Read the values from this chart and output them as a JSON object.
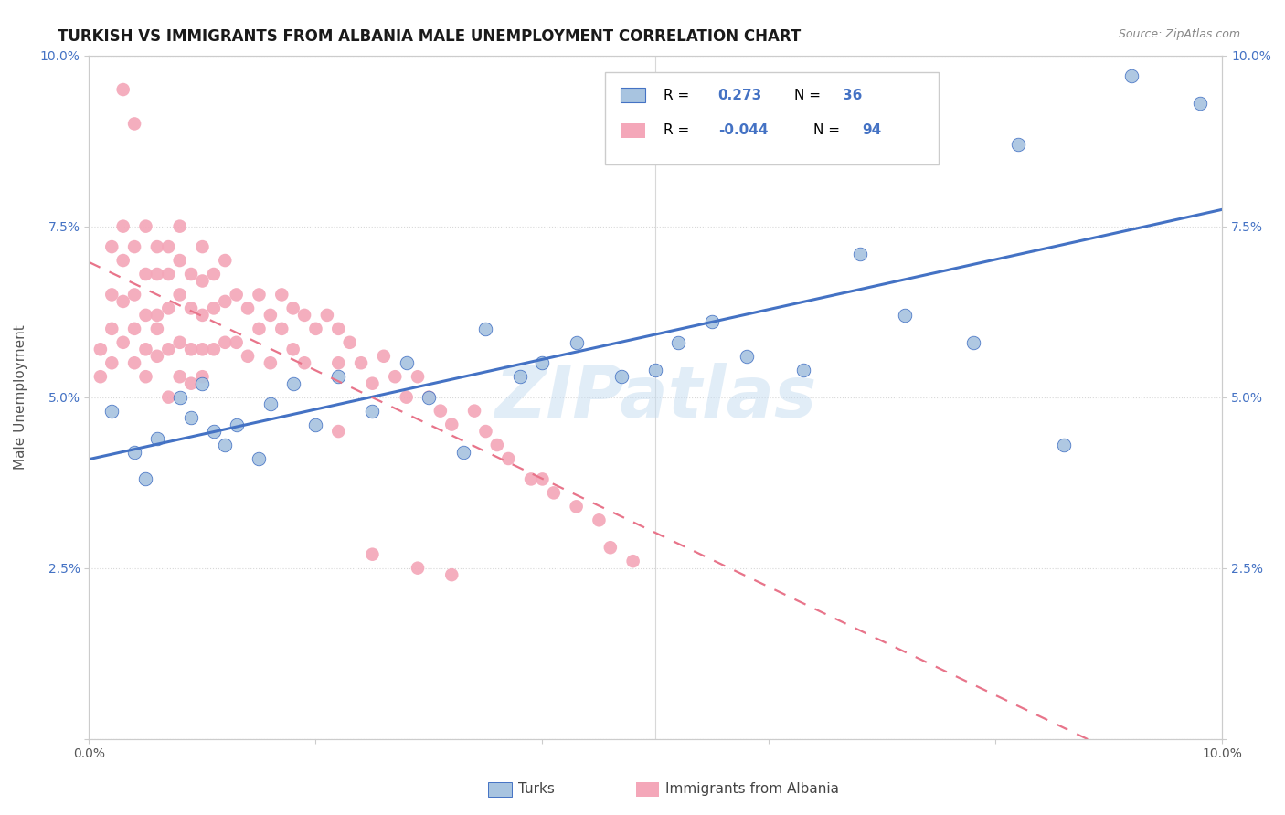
{
  "title": "TURKISH VS IMMIGRANTS FROM ALBANIA MALE UNEMPLOYMENT CORRELATION CHART",
  "source": "Source: ZipAtlas.com",
  "ylabel": "Male Unemployment",
  "watermark": "ZIPatlas",
  "xlim": [
    0.0,
    0.1
  ],
  "ylim": [
    0.0,
    0.1
  ],
  "xtick_positions": [
    0.0,
    0.02,
    0.04,
    0.06,
    0.08,
    0.1
  ],
  "xtick_labels": [
    "0.0%",
    "",
    "",
    "",
    "",
    "10.0%"
  ],
  "ytick_positions": [
    0.0,
    0.025,
    0.05,
    0.075,
    0.1
  ],
  "ytick_labels": [
    "",
    "2.5%",
    "5.0%",
    "7.5%",
    "10.0%"
  ],
  "turks_color": "#a8c4e0",
  "albania_color": "#f4a7b9",
  "turks_line_color": "#4472c4",
  "albania_line_color": "#e8748a",
  "legend_text_color": "#4472c4",
  "background_color": "#ffffff",
  "grid_color": "#d8d8d8",
  "title_fontsize": 12,
  "tick_fontsize": 10,
  "ylabel_fontsize": 11,
  "turks_x": [
    0.002,
    0.004,
    0.005,
    0.006,
    0.008,
    0.009,
    0.01,
    0.011,
    0.012,
    0.013,
    0.015,
    0.016,
    0.018,
    0.02,
    0.022,
    0.025,
    0.028,
    0.03,
    0.033,
    0.035,
    0.038,
    0.04,
    0.043,
    0.047,
    0.05,
    0.052,
    0.055,
    0.058,
    0.063,
    0.068,
    0.072,
    0.078,
    0.082,
    0.086,
    0.092,
    0.098
  ],
  "turks_y": [
    0.048,
    0.042,
    0.038,
    0.044,
    0.05,
    0.047,
    0.052,
    0.045,
    0.043,
    0.046,
    0.041,
    0.049,
    0.052,
    0.046,
    0.053,
    0.048,
    0.055,
    0.05,
    0.042,
    0.06,
    0.053,
    0.055,
    0.058,
    0.053,
    0.054,
    0.058,
    0.061,
    0.056,
    0.054,
    0.071,
    0.062,
    0.058,
    0.087,
    0.043,
    0.097,
    0.093
  ],
  "albania_x": [
    0.001,
    0.001,
    0.002,
    0.002,
    0.002,
    0.002,
    0.003,
    0.003,
    0.003,
    0.003,
    0.003,
    0.004,
    0.004,
    0.004,
    0.004,
    0.004,
    0.005,
    0.005,
    0.005,
    0.005,
    0.005,
    0.006,
    0.006,
    0.006,
    0.006,
    0.006,
    0.007,
    0.007,
    0.007,
    0.007,
    0.007,
    0.008,
    0.008,
    0.008,
    0.008,
    0.008,
    0.009,
    0.009,
    0.009,
    0.009,
    0.01,
    0.01,
    0.01,
    0.01,
    0.01,
    0.011,
    0.011,
    0.011,
    0.012,
    0.012,
    0.012,
    0.013,
    0.013,
    0.014,
    0.014,
    0.015,
    0.015,
    0.016,
    0.016,
    0.017,
    0.017,
    0.018,
    0.018,
    0.019,
    0.019,
    0.02,
    0.021,
    0.022,
    0.022,
    0.023,
    0.024,
    0.025,
    0.026,
    0.027,
    0.028,
    0.029,
    0.03,
    0.031,
    0.032,
    0.034,
    0.035,
    0.036,
    0.037,
    0.039,
    0.04,
    0.041,
    0.043,
    0.045,
    0.046,
    0.048,
    0.022,
    0.025,
    0.029,
    0.032
  ],
  "albania_y": [
    0.053,
    0.057,
    0.06,
    0.065,
    0.072,
    0.055,
    0.075,
    0.07,
    0.064,
    0.058,
    0.095,
    0.072,
    0.065,
    0.06,
    0.055,
    0.09,
    0.068,
    0.062,
    0.057,
    0.075,
    0.053,
    0.072,
    0.068,
    0.062,
    0.06,
    0.056,
    0.072,
    0.068,
    0.063,
    0.057,
    0.05,
    0.075,
    0.07,
    0.065,
    0.058,
    0.053,
    0.068,
    0.063,
    0.057,
    0.052,
    0.072,
    0.067,
    0.062,
    0.057,
    0.053,
    0.068,
    0.063,
    0.057,
    0.07,
    0.064,
    0.058,
    0.065,
    0.058,
    0.063,
    0.056,
    0.065,
    0.06,
    0.062,
    0.055,
    0.065,
    0.06,
    0.063,
    0.057,
    0.062,
    0.055,
    0.06,
    0.062,
    0.06,
    0.055,
    0.058,
    0.055,
    0.052,
    0.056,
    0.053,
    0.05,
    0.053,
    0.05,
    0.048,
    0.046,
    0.048,
    0.045,
    0.043,
    0.041,
    0.038,
    0.038,
    0.036,
    0.034,
    0.032,
    0.028,
    0.026,
    0.045,
    0.027,
    0.025,
    0.024
  ]
}
